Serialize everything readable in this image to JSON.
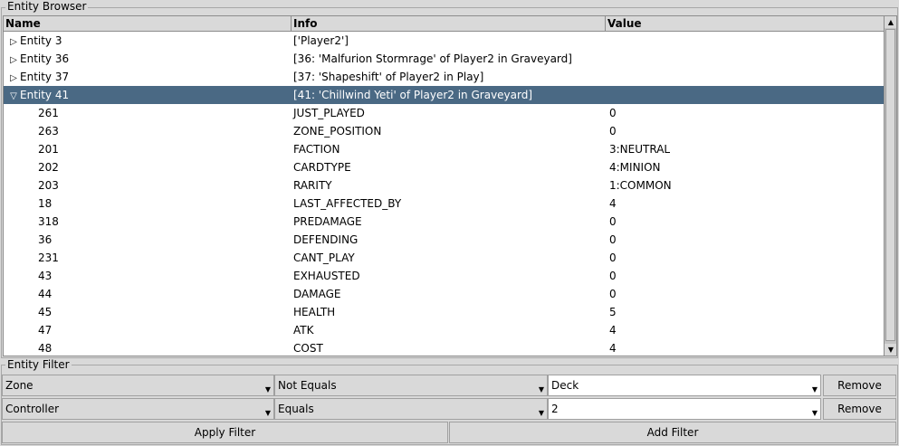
{
  "browser": {
    "title": "Entity Browser",
    "columns": [
      "Name",
      "Info",
      "Value"
    ],
    "rows": [
      {
        "type": "parent",
        "expanded": false,
        "name": "Entity 3",
        "info": "['Player2']",
        "value": ""
      },
      {
        "type": "parent",
        "expanded": false,
        "name": "Entity 36",
        "info": "[36: 'Malfurion Stormrage' of Player2 in Graveyard]",
        "value": ""
      },
      {
        "type": "parent",
        "expanded": false,
        "name": "Entity 37",
        "info": "[37: 'Shapeshift' of Player2 in Play]",
        "value": ""
      },
      {
        "type": "parent",
        "expanded": true,
        "selected": true,
        "name": "Entity 41",
        "info": "[41: 'Chillwind Yeti' of Player2 in Graveyard]",
        "value": ""
      },
      {
        "type": "child",
        "name": "261",
        "info": "JUST_PLAYED",
        "value": "0"
      },
      {
        "type": "child",
        "name": "263",
        "info": "ZONE_POSITION",
        "value": "0"
      },
      {
        "type": "child",
        "name": "201",
        "info": "FACTION",
        "value": "3:NEUTRAL"
      },
      {
        "type": "child",
        "name": "202",
        "info": "CARDTYPE",
        "value": "4:MINION"
      },
      {
        "type": "child",
        "name": "203",
        "info": "RARITY",
        "value": "1:COMMON"
      },
      {
        "type": "child",
        "name": "18",
        "info": "LAST_AFFECTED_BY",
        "value": "4"
      },
      {
        "type": "child",
        "name": "318",
        "info": "PREDAMAGE",
        "value": "0"
      },
      {
        "type": "child",
        "name": "36",
        "info": "DEFENDING",
        "value": "0"
      },
      {
        "type": "child",
        "name": "231",
        "info": "CANT_PLAY",
        "value": "0"
      },
      {
        "type": "child",
        "name": "43",
        "info": "EXHAUSTED",
        "value": "0"
      },
      {
        "type": "child",
        "name": "44",
        "info": "DAMAGE",
        "value": "0"
      },
      {
        "type": "child",
        "name": "45",
        "info": "HEALTH",
        "value": "5"
      },
      {
        "type": "child",
        "name": "47",
        "info": "ATK",
        "value": "4"
      },
      {
        "type": "child",
        "name": "48",
        "info": "COST",
        "value": "4"
      }
    ]
  },
  "filter": {
    "title": "Entity Filter",
    "rows": [
      {
        "field": "Zone",
        "op": "Not Equals",
        "value": "Deck",
        "remove": "Remove"
      },
      {
        "field": "Controller",
        "op": "Equals",
        "value": "2",
        "remove": "Remove"
      }
    ],
    "apply_label": "Apply Filter",
    "add_label": "Add Filter"
  },
  "icons": {
    "collapsed": "triangle-right-icon",
    "expanded": "triangle-down-icon",
    "dropdown": "chevron-down-icon",
    "scroll_up": "arrow-up-icon",
    "scroll_down": "arrow-down-icon"
  },
  "colors": {
    "selection": "#4a6984",
    "background": "#d9d9d9"
  }
}
